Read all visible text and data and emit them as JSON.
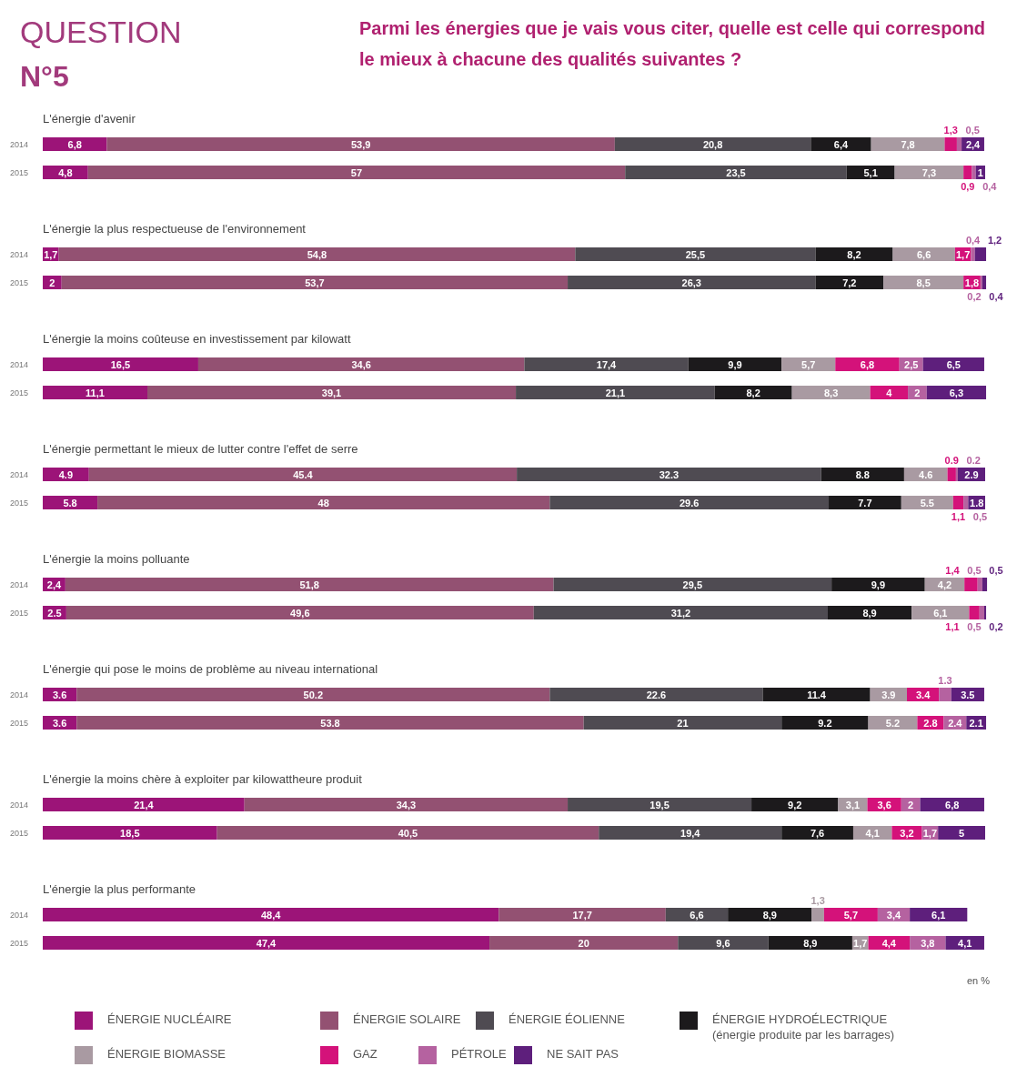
{
  "chart_data": [
    {
      "type": "bar",
      "orientation": "horizontal",
      "stacked": true,
      "xlim": [
        0,
        100
      ],
      "tick_labels": "y",
      "title": "L'énergie d'avenir",
      "categories": [
        "2014",
        "2015"
      ],
      "annotations": [
        "QUESTION",
        "N°5",
        "Parmi les énergies que je vais vous citer, quelle est celle qui correspond le mieux à chacune des qualités suivantes ?"
      ],
      "series": [
        {
          "color": "#9c1478",
          "values": [
            6.8,
            4.8
          ],
          "value_labels": [
            "6,8",
            "4,8"
          ]
        },
        {
          "color": "#935172",
          "values": [
            53.9,
            57
          ],
          "value_labels": [
            "53,9",
            "57"
          ]
        },
        {
          "color": "#4f4b52",
          "values": [
            20.8,
            23.5
          ],
          "value_labels": [
            "20,8",
            "23,5"
          ]
        },
        {
          "color": "#1c1a1c",
          "values": [
            6.4,
            5.1
          ],
          "value_labels": [
            "6,4",
            "5,1"
          ]
        },
        {
          "color": "#a99aa2",
          "values": [
            7.8,
            7.3
          ],
          "value_labels": [
            "7,8",
            "7,3"
          ]
        },
        {
          "color": "#d4127a",
          "values": [
            1.3,
            0.9
          ],
          "value_labels": [
            "1,3",
            "0,9"
          ]
        },
        {
          "color": "#b562a0",
          "values": [
            0.5,
            0.4
          ],
          "value_labels": [
            "0,5",
            "0,4"
          ]
        },
        {
          "color": "#5e1f7c",
          "values": [
            2.4,
            1
          ],
          "value_labels": [
            "2,4",
            "1"
          ]
        }
      ]
    },
    {
      "type": "bar",
      "orientation": "horizontal",
      "stacked": true,
      "xlim": [
        0,
        100
      ],
      "tick_labels": "y",
      "title": "L'énergie la plus respectueuse de l'environnement",
      "categories": [
        "2014",
        "2015"
      ],
      "series": [
        {
          "color": "#9c1478",
          "values": [
            1.7,
            2
          ],
          "value_labels": [
            "1,7",
            "2"
          ]
        },
        {
          "color": "#935172",
          "values": [
            54.8,
            53.7
          ],
          "value_labels": [
            "54,8",
            "53,7"
          ]
        },
        {
          "color": "#4f4b52",
          "values": [
            25.5,
            26.3
          ],
          "value_labels": [
            "25,5",
            "26,3"
          ]
        },
        {
          "color": "#1c1a1c",
          "values": [
            8.2,
            7.2
          ],
          "value_labels": [
            "8,2",
            "7,2"
          ]
        },
        {
          "color": "#a99aa2",
          "values": [
            6.6,
            8.5
          ],
          "value_labels": [
            "6,6",
            "8,5"
          ]
        },
        {
          "color": "#d4127a",
          "values": [
            1.7,
            1.8
          ],
          "value_labels": [
            "1,7",
            "1,8"
          ]
        },
        {
          "color": "#b562a0",
          "values": [
            0.4,
            0.2
          ],
          "value_labels": [
            "0,4",
            "0,2"
          ]
        },
        {
          "color": "#5e1f7c",
          "values": [
            1.2,
            0.4
          ],
          "value_labels": [
            "1,2",
            "0,4"
          ]
        }
      ]
    },
    {
      "type": "bar",
      "orientation": "horizontal",
      "stacked": true,
      "xlim": [
        0,
        100
      ],
      "tick_labels": "y",
      "title": "L'énergie la moins coûteuse en investissement par kilowatt",
      "categories": [
        "2014",
        "2015"
      ],
      "series": [
        {
          "color": "#9c1478",
          "values": [
            16.5,
            11.1
          ],
          "value_labels": [
            "16,5",
            "11,1"
          ]
        },
        {
          "color": "#935172",
          "values": [
            34.6,
            39.1
          ],
          "value_labels": [
            "34,6",
            "39,1"
          ]
        },
        {
          "color": "#4f4b52",
          "values": [
            17.4,
            21.1
          ],
          "value_labels": [
            "17,4",
            "21,1"
          ]
        },
        {
          "color": "#1c1a1c",
          "values": [
            9.9,
            8.2
          ],
          "value_labels": [
            "9,9",
            "8,2"
          ]
        },
        {
          "color": "#a99aa2",
          "values": [
            5.7,
            8.3
          ],
          "value_labels": [
            "5,7",
            "8,3"
          ]
        },
        {
          "color": "#d4127a",
          "values": [
            6.8,
            4
          ],
          "value_labels": [
            "6,8",
            "4"
          ]
        },
        {
          "color": "#b562a0",
          "values": [
            2.5,
            2
          ],
          "value_labels": [
            "2,5",
            "2"
          ]
        },
        {
          "color": "#5e1f7c",
          "values": [
            6.5,
            6.3
          ],
          "value_labels": [
            "6,5",
            "6,3"
          ]
        }
      ]
    },
    {
      "type": "bar",
      "orientation": "horizontal",
      "stacked": true,
      "xlim": [
        0,
        100
      ],
      "tick_labels": "y",
      "title": "L'énergie permettant le mieux de lutter contre l'effet de serre",
      "categories": [
        "2014",
        "2015"
      ],
      "series": [
        {
          "color": "#9c1478",
          "values": [
            4.9,
            5.8
          ],
          "value_labels": [
            "4.9",
            "5.8"
          ]
        },
        {
          "color": "#935172",
          "values": [
            45.4,
            48
          ],
          "value_labels": [
            "45.4",
            "48"
          ]
        },
        {
          "color": "#4f4b52",
          "values": [
            32.3,
            29.6
          ],
          "value_labels": [
            "32.3",
            "29.6"
          ]
        },
        {
          "color": "#1c1a1c",
          "values": [
            8.8,
            7.7
          ],
          "value_labels": [
            "8.8",
            "7.7"
          ]
        },
        {
          "color": "#a99aa2",
          "values": [
            4.6,
            5.5
          ],
          "value_labels": [
            "4.6",
            "5.5"
          ]
        },
        {
          "color": "#d4127a",
          "values": [
            0.9,
            1.1
          ],
          "value_labels": [
            "0.9",
            "1,1"
          ]
        },
        {
          "color": "#b562a0",
          "values": [
            0.2,
            0.5
          ],
          "value_labels": [
            "0.2",
            "0,5"
          ]
        },
        {
          "color": "#5e1f7c",
          "values": [
            2.9,
            1.8
          ],
          "value_labels": [
            "2.9",
            "1.8"
          ]
        }
      ]
    },
    {
      "type": "bar",
      "orientation": "horizontal",
      "stacked": true,
      "xlim": [
        0,
        100
      ],
      "tick_labels": "y",
      "title": "L'énergie la moins polluante",
      "categories": [
        "2014",
        "2015"
      ],
      "series": [
        {
          "color": "#9c1478",
          "values": [
            2.4,
            2.5
          ],
          "value_labels": [
            "2,4",
            "2.5"
          ]
        },
        {
          "color": "#935172",
          "values": [
            51.8,
            49.6
          ],
          "value_labels": [
            "51,8",
            "49,6"
          ]
        },
        {
          "color": "#4f4b52",
          "values": [
            29.5,
            31.2
          ],
          "value_labels": [
            "29,5",
            "31,2"
          ]
        },
        {
          "color": "#1c1a1c",
          "values": [
            9.9,
            8.9
          ],
          "value_labels": [
            "9,9",
            "8,9"
          ]
        },
        {
          "color": "#a99aa2",
          "values": [
            4.2,
            6.1
          ],
          "value_labels": [
            "4,2",
            "6,1"
          ]
        },
        {
          "color": "#d4127a",
          "values": [
            1.4,
            1.1
          ],
          "value_labels": [
            "1,4",
            "1,1"
          ]
        },
        {
          "color": "#b562a0",
          "values": [
            0.5,
            0.5
          ],
          "value_labels": [
            "0,5",
            "0,5"
          ]
        },
        {
          "color": "#5e1f7c",
          "values": [
            0.5,
            0.2
          ],
          "value_labels": [
            "0,5",
            "0,2"
          ]
        }
      ]
    },
    {
      "type": "bar",
      "orientation": "horizontal",
      "stacked": true,
      "xlim": [
        0,
        100
      ],
      "tick_labels": "y",
      "title": "L'énergie qui pose le moins de problème au niveau international",
      "categories": [
        "2014",
        "2015"
      ],
      "series": [
        {
          "color": "#9c1478",
          "values": [
            3.6,
            3.6
          ],
          "value_labels": [
            "3.6",
            "3.6"
          ]
        },
        {
          "color": "#935172",
          "values": [
            50.2,
            53.8
          ],
          "value_labels": [
            "50.2",
            "53.8"
          ]
        },
        {
          "color": "#4f4b52",
          "values": [
            22.6,
            21
          ],
          "value_labels": [
            "22.6",
            "21"
          ]
        },
        {
          "color": "#1c1a1c",
          "values": [
            11.4,
            9.2
          ],
          "value_labels": [
            "11.4",
            "9.2"
          ]
        },
        {
          "color": "#a99aa2",
          "values": [
            3.9,
            5.2
          ],
          "value_labels": [
            "3.9",
            "5.2"
          ]
        },
        {
          "color": "#d4127a",
          "values": [
            3.4,
            2.8
          ],
          "value_labels": [
            "3.4",
            "2.8"
          ]
        },
        {
          "color": "#b562a0",
          "values": [
            1.3,
            2.4
          ],
          "value_labels": [
            "1.3",
            "2.4"
          ]
        },
        {
          "color": "#5e1f7c",
          "values": [
            3.5,
            2.1
          ],
          "value_labels": [
            "3.5",
            "2.1"
          ]
        }
      ]
    },
    {
      "type": "bar",
      "orientation": "horizontal",
      "stacked": true,
      "xlim": [
        0,
        100
      ],
      "tick_labels": "y",
      "title": "L'énergie la moins chère à exploiter par kilowattheure produit",
      "categories": [
        "2014",
        "2015"
      ],
      "series": [
        {
          "color": "#9c1478",
          "values": [
            21.4,
            18.5
          ],
          "value_labels": [
            "21,4",
            "18,5"
          ]
        },
        {
          "color": "#935172",
          "values": [
            34.3,
            40.5
          ],
          "value_labels": [
            "34,3",
            "40,5"
          ]
        },
        {
          "color": "#4f4b52",
          "values": [
            19.5,
            19.4
          ],
          "value_labels": [
            "19,5",
            "19,4"
          ]
        },
        {
          "color": "#1c1a1c",
          "values": [
            9.2,
            7.6
          ],
          "value_labels": [
            "9,2",
            "7,6"
          ]
        },
        {
          "color": "#a99aa2",
          "values": [
            3.1,
            4.1
          ],
          "value_labels": [
            "3,1",
            "4,1"
          ]
        },
        {
          "color": "#d4127a",
          "values": [
            3.6,
            3.2
          ],
          "value_labels": [
            "3,6",
            "3,2"
          ]
        },
        {
          "color": "#b562a0",
          "values": [
            2,
            1.7
          ],
          "value_labels": [
            "2",
            "1,7"
          ]
        },
        {
          "color": "#5e1f7c",
          "values": [
            6.8,
            5
          ],
          "value_labels": [
            "6,8",
            "5"
          ]
        }
      ]
    },
    {
      "type": "bar",
      "orientation": "horizontal",
      "stacked": true,
      "xlim": [
        0,
        100
      ],
      "tick_labels": "y",
      "title": "L'énergie la plus performante",
      "categories": [
        "2014",
        "2015"
      ],
      "legend": "bottom",
      "annotations": [
        "en %"
      ],
      "series": [
        {
          "name": "ÉNERGIE NUCLÉAIRE",
          "color": "#9c1478",
          "values": [
            48.4,
            47.4
          ],
          "value_labels": [
            "48,4",
            "47,4"
          ]
        },
        {
          "name": "ÉNERGIE SOLAIRE",
          "color": "#935172",
          "values": [
            17.7,
            20
          ],
          "value_labels": [
            "17,7",
            "20"
          ]
        },
        {
          "name": "ÉNERGIE ÉOLIENNE",
          "color": "#4f4b52",
          "values": [
            6.6,
            9.6
          ],
          "value_labels": [
            "6,6",
            "9,6"
          ]
        },
        {
          "name": "ÉNERGIE HYDROÉLECTRIQUE (énergie produite par les barrages)",
          "color": "#1c1a1c",
          "values": [
            8.9,
            8.9
          ],
          "value_labels": [
            "8,9",
            "8,9"
          ]
        },
        {
          "name": "ÉNERGIE BIOMASSE",
          "color": "#a99aa2",
          "values": [
            1.3,
            1.7
          ],
          "value_labels": [
            "1,3",
            "1,7"
          ]
        },
        {
          "name": "GAZ",
          "color": "#d4127a",
          "values": [
            5.7,
            4.4
          ],
          "value_labels": [
            "5,7",
            "4,4"
          ]
        },
        {
          "name": "PÉTROLE",
          "color": "#b562a0",
          "values": [
            3.4,
            3.8
          ],
          "value_labels": [
            "3,4",
            "3,8"
          ]
        },
        {
          "name": "NE SAIT PAS",
          "color": "#5e1f7c",
          "values": [
            6.1,
            4.1
          ],
          "value_labels": [
            "6,1",
            "4,1"
          ]
        }
      ]
    }
  ]
}
